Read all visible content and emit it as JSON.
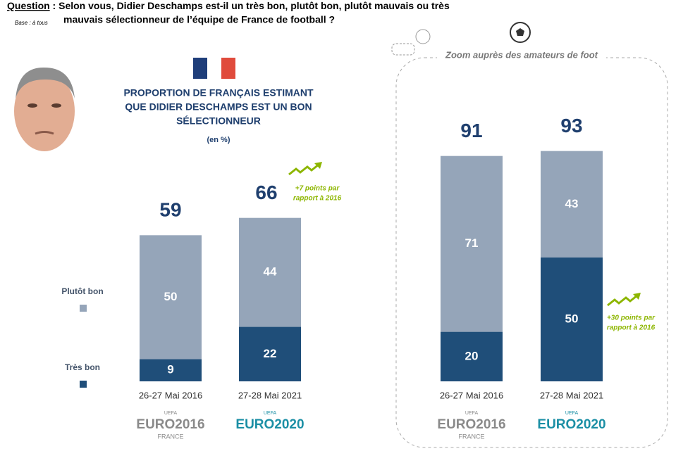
{
  "header": {
    "question_label": "Question",
    "question": " : Selon vous, Didier Deschamps est-il un très bon, plutôt bon, plutôt mauvais ou très",
    "question_line2": "mauvais sélectionneur de l’équipe de France de football ?",
    "base": "Base : à tous"
  },
  "chart_data": [
    {
      "type": "stacked-bar",
      "title": [
        "PROPORTION DE FRANÇAIS ESTIMANT",
        "QUE DIDIER DESCHAMPS EST UN BON",
        "SÉLECTIONNEUR"
      ],
      "subtitle": "(en %)",
      "categories": [
        "26-27 Mai 2016",
        "27-28 Mai 2021"
      ],
      "series": [
        {
          "name": "Très bon",
          "color": "#1f4e79",
          "values": [
            9,
            22
          ]
        },
        {
          "name": "Plutôt bon",
          "color": "#95a5b9",
          "values": [
            50,
            44
          ]
        }
      ],
      "totals": [
        59,
        66
      ],
      "annotation": [
        "+7 points par",
        "rapport à 2016"
      ],
      "legend": true
    },
    {
      "type": "stacked-bar",
      "title": "Zoom auprès des amateurs de foot",
      "categories": [
        "26-27 Mai 2016",
        "27-28 Mai 2021"
      ],
      "series": [
        {
          "name": "Très bon",
          "color": "#1f4e79",
          "values": [
            20,
            50
          ]
        },
        {
          "name": "Plutôt bon",
          "color": "#95a5b9",
          "values": [
            71,
            43
          ]
        }
      ],
      "totals": [
        91,
        93
      ],
      "annotation": [
        "+30 points par",
        "rapport à 2016"
      ],
      "legend": false
    }
  ],
  "logos": [
    {
      "org": "UEFA",
      "name": "EURO2016",
      "place": "FRANCE"
    },
    {
      "org": "UEFA",
      "name": "EURO2020"
    }
  ]
}
